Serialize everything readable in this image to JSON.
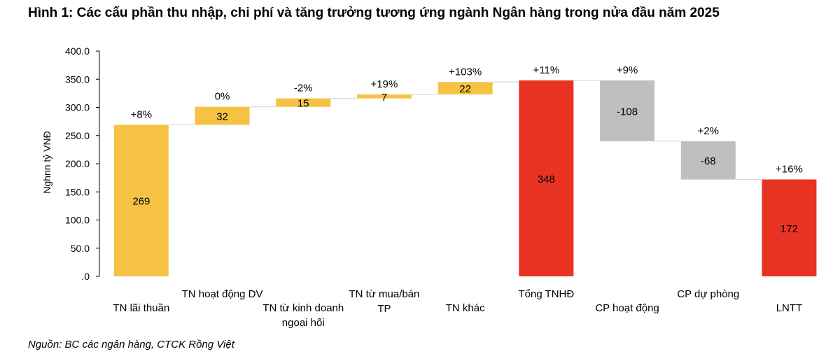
{
  "title": "Hình 1: Các cấu phần thu nhập, chi phí và tăng trưởng tương ứng ngành Ngân hàng trong nửa đầu năm 2025",
  "source": "Nguồn: BC các ngân hàng, CTCK Rồng Việt",
  "chart_data": {
    "type": "bar",
    "subtype": "waterfall",
    "ylabel": "Nghnn tỷ VNĐ",
    "ylim": [
      0,
      400
    ],
    "yticks": [
      "400.0",
      "350.0",
      "300.0",
      "250.0",
      "200.0",
      "150.0",
      "100.0",
      "50.0",
      ".0"
    ],
    "ytick_values": [
      400,
      350,
      300,
      250,
      200,
      150,
      100,
      50,
      0
    ],
    "grid": false,
    "colors": {
      "increase": "#F5C243",
      "total": "#E83323",
      "decrease": "#BFBFBF",
      "connector": "#D9D9D9"
    },
    "bars": [
      {
        "category": [
          "TN lãi thuần"
        ],
        "start": 0,
        "end": 269,
        "label": "269",
        "growth": "+8%",
        "kind": "total"
      },
      {
        "category": [
          "TN hoạt động DV"
        ],
        "start": 269,
        "end": 301,
        "label": "32",
        "growth": "0%",
        "kind": "increase"
      },
      {
        "category": [
          "TN từ kinh doanh",
          "ngoại hối"
        ],
        "start": 301,
        "end": 316,
        "label": "15",
        "growth": "-2%",
        "kind": "increase"
      },
      {
        "category": [
          "TN từ mua/bán",
          "TP"
        ],
        "start": 316,
        "end": 323,
        "label": "7",
        "growth": "+19%",
        "kind": "increase"
      },
      {
        "category": [
          "TN khác"
        ],
        "start": 323,
        "end": 345,
        "label": "22",
        "growth": "+103%",
        "kind": "increase"
      },
      {
        "category": [
          "Tổng TNHĐ"
        ],
        "start": 0,
        "end": 348,
        "label": "348",
        "growth": "+11%",
        "kind": "total-red"
      },
      {
        "category": [
          "CP hoạt động"
        ],
        "start": 348,
        "end": 240,
        "label": "-108",
        "growth": "+9%",
        "kind": "decrease"
      },
      {
        "category": [
          "CP dự phòng"
        ],
        "start": 240,
        "end": 172,
        "label": "-68",
        "growth": "+2%",
        "kind": "decrease"
      },
      {
        "category": [
          "LNTT"
        ],
        "start": 0,
        "end": 172,
        "label": "172",
        "growth": "+16%",
        "kind": "total-red"
      }
    ]
  }
}
